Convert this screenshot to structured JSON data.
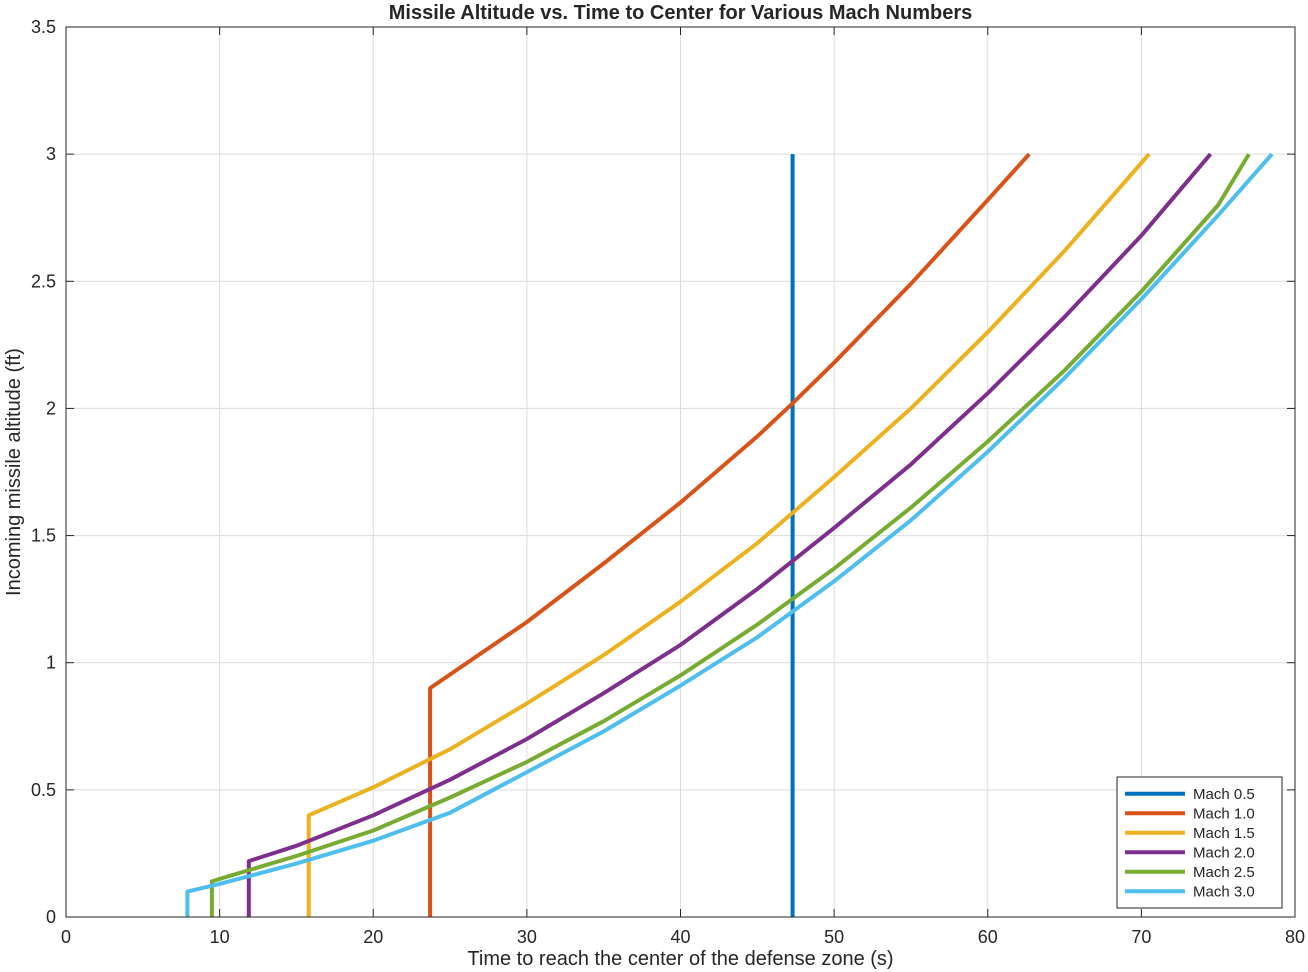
{
  "chart_data": {
    "type": "line",
    "title": "Missile Altitude vs. Time to Center for Various Mach Numbers",
    "xlabel": "Time to reach the center of the defense zone (s)",
    "ylabel": "Incoming missile altitude (ft)",
    "xlim": [
      0,
      80
    ],
    "ylim": [
      0,
      3.5
    ],
    "xticks": [
      0,
      10,
      20,
      30,
      40,
      50,
      60,
      70,
      80
    ],
    "yticks": [
      0,
      0.5,
      1,
      1.5,
      2,
      2.5,
      3,
      3.5
    ],
    "xtick_labels": [
      "0",
      "10",
      "20",
      "30",
      "40",
      "50",
      "60",
      "70",
      "80"
    ],
    "ytick_labels": [
      "0",
      "0.5",
      "1",
      "1.5",
      "2",
      "2.5",
      "3",
      "3.5"
    ],
    "grid": true,
    "legend_position": "bottom-right",
    "series": [
      {
        "name": "Mach 0.5",
        "color": "#0072BD",
        "x": [
          47.3,
          47.3
        ],
        "y": [
          0,
          3.0
        ]
      },
      {
        "name": "Mach 1.0",
        "color": "#D95319",
        "x": [
          23.7,
          23.7,
          30,
          35,
          40,
          45,
          47.3,
          50,
          55,
          60,
          62.7
        ],
        "y": [
          0,
          0.9,
          1.16,
          1.39,
          1.63,
          1.89,
          2.02,
          2.18,
          2.49,
          2.82,
          3.0
        ]
      },
      {
        "name": "Mach 1.5",
        "color": "#EDB120",
        "x": [
          15.8,
          15.8,
          20,
          25,
          30,
          35,
          40,
          45,
          50,
          55,
          60,
          65,
          70.5
        ],
        "y": [
          0,
          0.4,
          0.51,
          0.66,
          0.84,
          1.03,
          1.24,
          1.47,
          1.73,
          2.0,
          2.3,
          2.62,
          3.0
        ]
      },
      {
        "name": "Mach 2.0",
        "color": "#7E2F8E",
        "x": [
          11.9,
          11.9,
          15,
          20,
          25,
          30,
          35,
          40,
          45,
          50,
          55,
          60,
          65,
          70,
          74.5
        ],
        "y": [
          0,
          0.22,
          0.28,
          0.4,
          0.54,
          0.7,
          0.88,
          1.07,
          1.29,
          1.53,
          1.78,
          2.06,
          2.36,
          2.68,
          3.0
        ]
      },
      {
        "name": "Mach 2.5",
        "color": "#77AC30",
        "x": [
          9.5,
          9.5,
          10,
          15,
          20,
          25,
          30,
          35,
          40,
          45,
          50,
          55,
          60,
          65,
          70,
          75,
          77.0
        ],
        "y": [
          0,
          0.14,
          0.15,
          0.24,
          0.34,
          0.47,
          0.61,
          0.77,
          0.95,
          1.15,
          1.37,
          1.61,
          1.87,
          2.15,
          2.46,
          2.8,
          3.0
        ]
      },
      {
        "name": "Mach 3.0",
        "color": "#4DBEEE",
        "x": [
          7.9,
          7.9,
          10,
          15,
          20,
          25,
          30,
          35,
          40,
          45,
          50,
          55,
          60,
          65,
          70,
          75,
          78.5
        ],
        "y": [
          0,
          0.1,
          0.13,
          0.21,
          0.3,
          0.41,
          0.57,
          0.73,
          0.91,
          1.1,
          1.32,
          1.56,
          1.83,
          2.12,
          2.43,
          2.76,
          3.0
        ]
      }
    ]
  }
}
